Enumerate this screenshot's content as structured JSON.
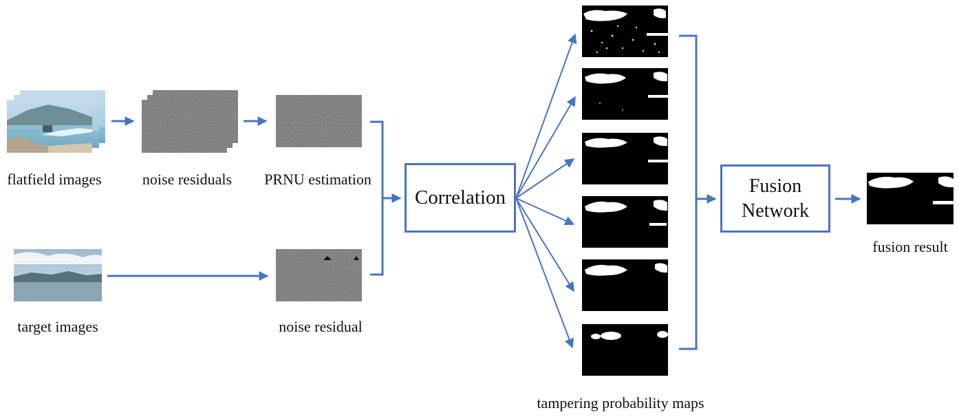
{
  "labels": {
    "flatfield": "flatfield images",
    "noise_residuals": "noise residuals",
    "prnu": "PRNU estimation",
    "target": "target images",
    "noise_residual": "noise residual",
    "correlation": "Correlation",
    "fusion_line1": "Fusion",
    "fusion_line2": "Network",
    "fusion_result": "fusion result",
    "maps": "tampering probability maps"
  },
  "colors": {
    "arrow": "#4a74bf",
    "box_border": "#4a74bf",
    "text": "#111111",
    "noise_gray": "#5e5e5e",
    "map_black": "#000000",
    "map_white": "#ffffff",
    "sky": "#a9c9e2",
    "sea": "#7fb3c9"
  },
  "tampering_map_count": 6
}
